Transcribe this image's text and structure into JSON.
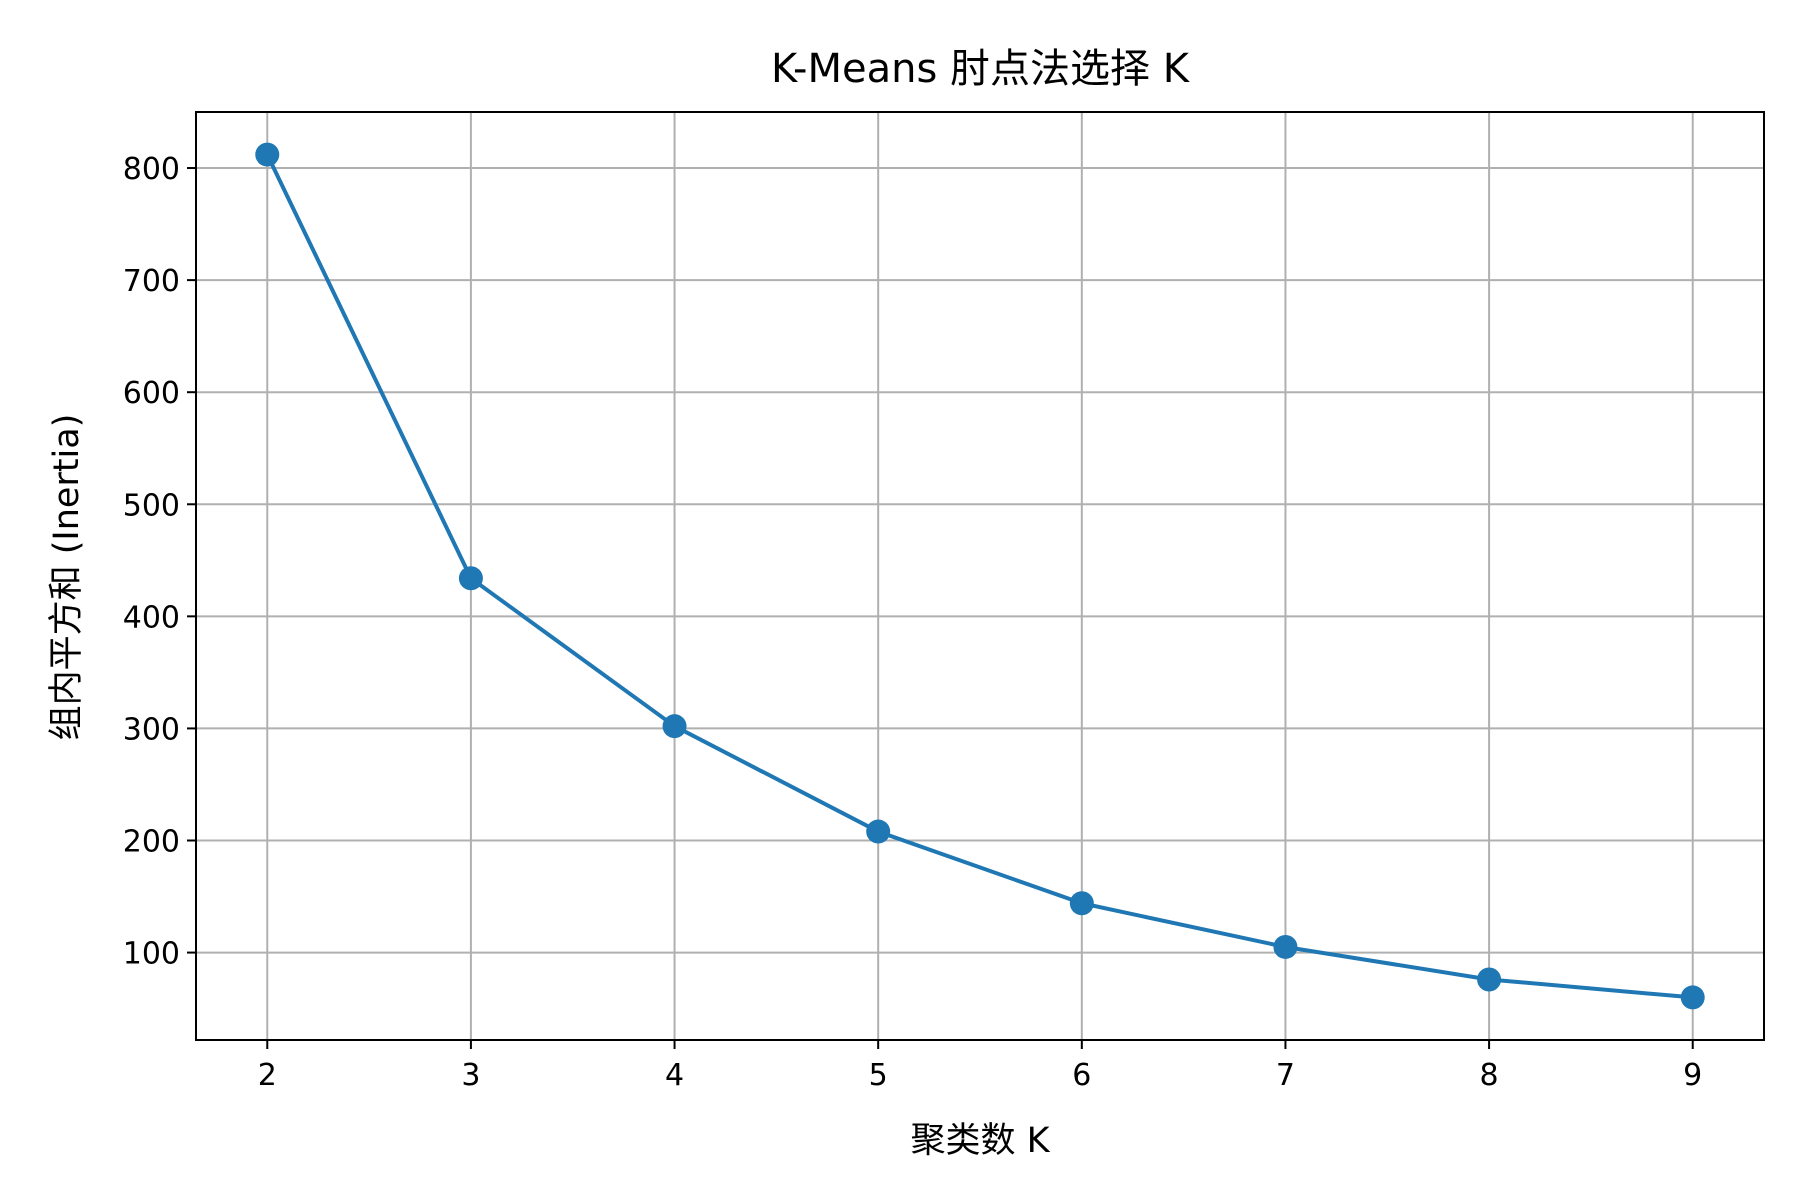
{
  "chart_data": {
    "type": "line",
    "title": "K-Means 肘点法选择 K",
    "xlabel": "聚类数 K",
    "ylabel": "组内平方和 (Inertia)",
    "x": [
      2,
      3,
      4,
      5,
      6,
      7,
      8,
      9
    ],
    "series": [
      {
        "values": [
          812,
          434,
          302,
          208,
          144,
          105,
          76,
          60
        ],
        "color": "#1f77b4",
        "marker": "circle"
      }
    ],
    "xlim": [
      1.65,
      9.35
    ],
    "ylim": [
      22,
      850
    ],
    "xticks": [
      2,
      3,
      4,
      5,
      6,
      7,
      8,
      9
    ],
    "yticks": [
      100,
      200,
      300,
      400,
      500,
      600,
      700,
      800
    ],
    "grid": true,
    "grid_color": "#b0b0b0",
    "axes_color": "#000000"
  }
}
